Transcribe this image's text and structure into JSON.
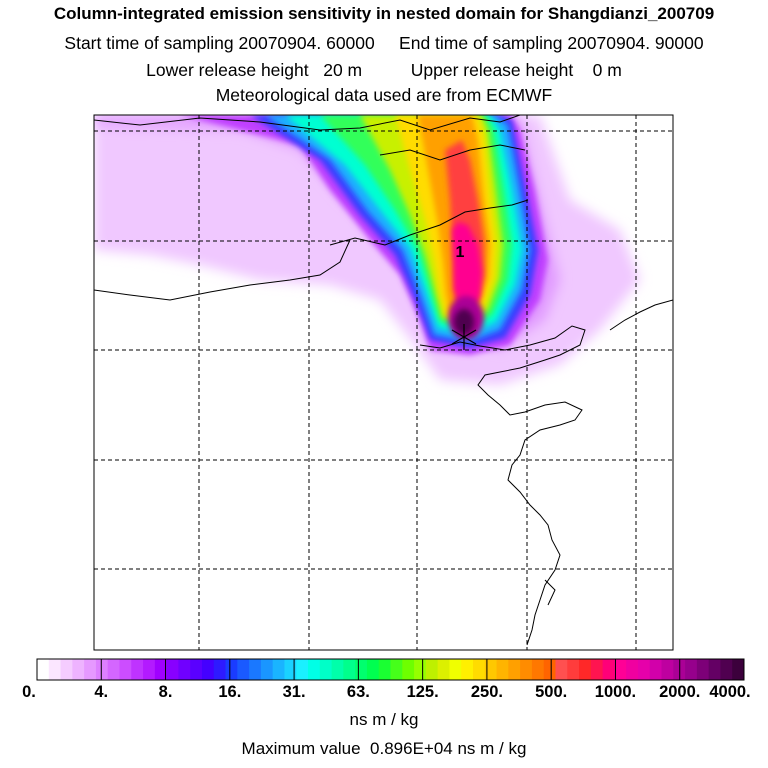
{
  "header": {
    "title": "Column-integrated emission sensitivity in nested domain for Shangdianzi_200709",
    "line2": "Start time of sampling 20070904. 60000     End time of sampling 20070904. 90000",
    "line3": "Lower release height   20 m          Upper release height    0 m",
    "line4": "Meteorological data used are from ECMWF"
  },
  "map": {
    "site_marker_label": "1",
    "marker_icon": "star-icon"
  },
  "colorbar": {
    "tick_labels": [
      "0.",
      "4.",
      "8.",
      "16.",
      "31.",
      "63.",
      "125.",
      "250.",
      "500.",
      "1000.",
      "2000.",
      "4000."
    ],
    "colors": [
      "#ffffff",
      "#fbe6ff",
      "#f5ccff",
      "#eeb3ff",
      "#e699ff",
      "#dd80ff",
      "#d466ff",
      "#cc4dff",
      "#bf33ff",
      "#b31aff",
      "#a000ff",
      "#8800ff",
      "#7000ff",
      "#5a00ff",
      "#4400ff",
      "#2e1aff",
      "#1a3cff",
      "#1a5aff",
      "#1a78ff",
      "#1a96ff",
      "#1ab4ff",
      "#1ad2ff",
      "#1af0ff",
      "#00ffe6",
      "#00ffc8",
      "#00ffaa",
      "#00ff8c",
      "#00ff6e",
      "#00ff50",
      "#1aff32",
      "#46ff1a",
      "#6eff00",
      "#96ff00",
      "#bef000",
      "#dcf000",
      "#f0ff00",
      "#fff000",
      "#ffdc00",
      "#ffc800",
      "#ffb400",
      "#ffa000",
      "#ff8c00",
      "#ff7800",
      "#ff6400",
      "#ff5050",
      "#ff3c3c",
      "#ff2828",
      "#ff1450",
      "#ff0078",
      "#ff0096",
      "#f000a0",
      "#e600aa",
      "#d200aa",
      "#be00a0",
      "#aa0096",
      "#96008c",
      "#7d0078",
      "#640064",
      "#500050",
      "#3c003c"
    ],
    "unit_label": "ns m / kg"
  },
  "footer": {
    "max_value": "Maximum value  0.896E+04 ns m / kg"
  }
}
